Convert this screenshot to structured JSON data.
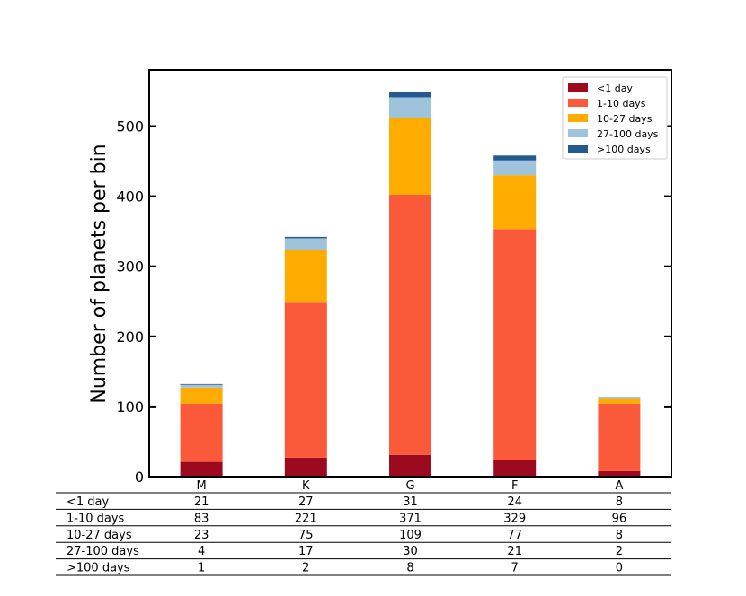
{
  "chart_data": {
    "type": "bar",
    "stacked": true,
    "categories": [
      "M",
      "K",
      "G",
      "F",
      "A"
    ],
    "series": [
      {
        "name": "<1 day",
        "values": [
          21,
          27,
          31,
          24,
          8
        ],
        "color": "#9b0a1e"
      },
      {
        "name": "1-10 days",
        "values": [
          83,
          221,
          371,
          329,
          96
        ],
        "color": "#fb5a3a"
      },
      {
        "name": "10-27 days",
        "values": [
          23,
          75,
          109,
          77,
          8
        ],
        "color": "#fead00"
      },
      {
        "name": "27-100 days",
        "values": [
          4,
          17,
          30,
          21,
          2
        ],
        "color": "#9ec3db"
      },
      {
        "name": ">100 days",
        "values": [
          1,
          2,
          8,
          7,
          0
        ],
        "color": "#245a91"
      }
    ],
    "title": "",
    "xlabel": "",
    "ylabel": "Number of planets per bin",
    "ylim": [
      0,
      580
    ],
    "yticks": [
      0,
      100,
      200,
      300,
      400,
      500
    ],
    "grid": false,
    "legend": "top-right",
    "table": {
      "row_labels": [
        "<1 day",
        "1-10 days",
        "10-27 days",
        "27-100 days",
        ">100 days"
      ],
      "cells": [
        [
          "21",
          "27",
          "31",
          "24",
          "8"
        ],
        [
          "83",
          "221",
          "371",
          "329",
          "96"
        ],
        [
          "23",
          "75",
          "109",
          "77",
          "8"
        ],
        [
          "4",
          "17",
          "30",
          "21",
          "2"
        ],
        [
          "1",
          "2",
          "8",
          "7",
          "0"
        ]
      ]
    }
  }
}
